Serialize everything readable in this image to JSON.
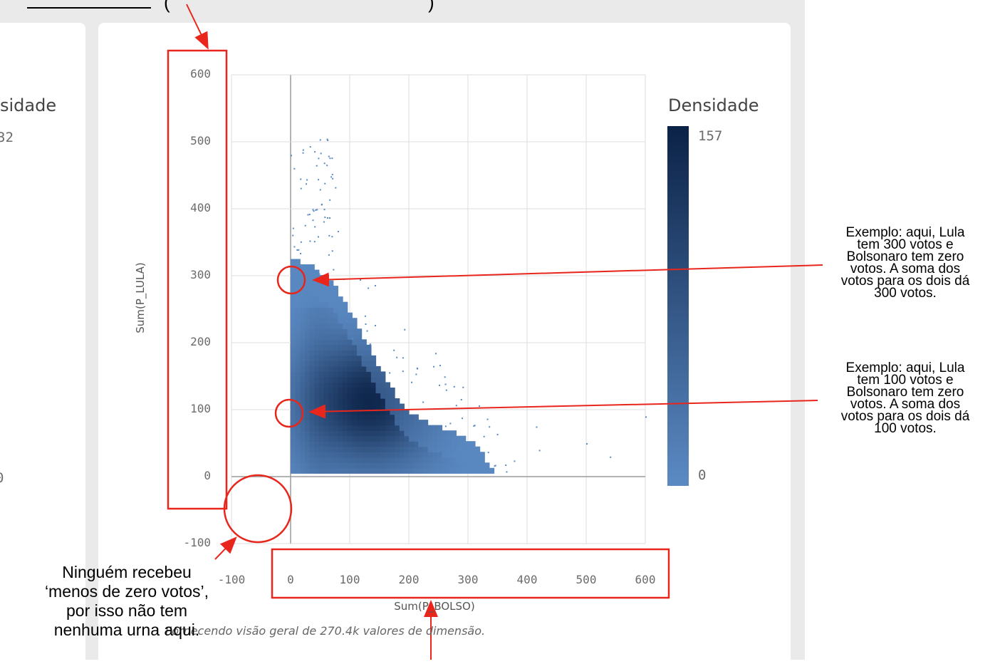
{
  "top_annotation_fragment": "(",
  "top_annotation_fragment_end": ")",
  "left_panel": {
    "legend_title_partial": "sidade",
    "legend_value_partial": "32",
    "zero_partial": "0"
  },
  "chart_data": {
    "type": "heatmap",
    "title": "",
    "xlabel": "Sum(P_BOLSO)",
    "ylabel": "Sum(P_LULA)",
    "xlim": [
      -100,
      600
    ],
    "ylim": [
      -100,
      600
    ],
    "x_ticks": [
      "-100",
      "0",
      "100",
      "200",
      "300",
      "400",
      "500",
      "600"
    ],
    "y_ticks": [
      "-100",
      "0",
      "100",
      "200",
      "300",
      "400",
      "500",
      "600"
    ],
    "grid": true,
    "legend": {
      "title": "Densidade",
      "max_label": "157",
      "min_label": "0",
      "placement": "right"
    },
    "colorscale": [
      "#5b8ac3",
      "#0b2247"
    ],
    "density_model": "triangular region bounded by x>=0, y>=0, x+y<=~330, peak near (130,110)",
    "peak": {
      "x": 130,
      "y": 110,
      "value": 157
    },
    "footnote": "Fornecendo visão geral de 270.4k valores de dimensão."
  },
  "annotations": {
    "lula300": "Exemplo: aqui, Lula tem 300 votos e Bolsonaro tem zero votos. A soma dos votos para os dois dá 300 votos.",
    "lula300_lines": [
      "Exemplo: aqui, Lula",
      "tem 300 votos e",
      "Bolsonaro tem zero",
      "votos. A soma dos",
      "votos para os dois dá",
      "300 votos."
    ],
    "lula100_lines": [
      "Exemplo: aqui, Lula",
      "tem 100 votos e",
      "Bolsonaro tem zero",
      "votos. A soma dos",
      "votos para os dois dá",
      "100 votos."
    ],
    "negative_lines": [
      "Ninguém recebeu",
      "‘menos de zero votos’,",
      "por isso não tem",
      "nenhuma urna aqui."
    ]
  },
  "colors": {
    "annotation_red": "#e8261c",
    "dense_dark": "#0b2247",
    "sparse_light": "#5b8ac3",
    "grid": "#dcdcdc",
    "axis_zero": "#9a9a9a"
  }
}
